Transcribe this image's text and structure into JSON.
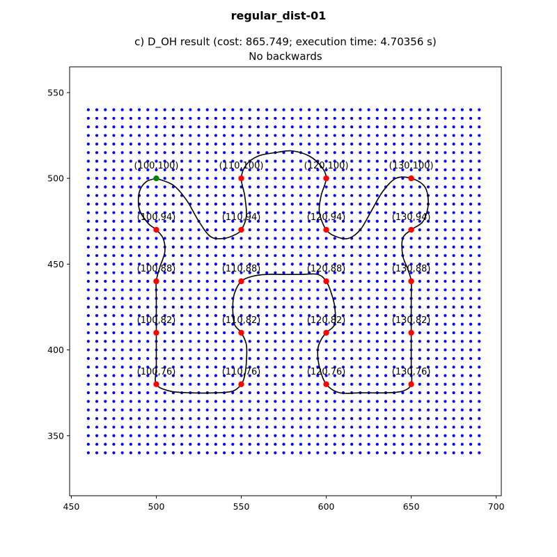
{
  "figure_title": "regular_dist-01",
  "chart_data": {
    "type": "scatter",
    "title": "c) D_OH result (cost: 865.749; execution time: 4.70356 s)",
    "subtitle": "No backwards",
    "xlabel": "",
    "ylabel": "",
    "xlim": [
      449,
      703
    ],
    "ylim": [
      315,
      565
    ],
    "x_ticks": [
      450,
      500,
      550,
      600,
      650,
      700
    ],
    "y_ticks": [
      350,
      400,
      450,
      500,
      550
    ],
    "grid": false,
    "background_grid": {
      "x_start": 460,
      "x_end": 690,
      "x_step": 5,
      "y_start": 340,
      "y_end": 540,
      "y_step": 5,
      "color": "#0000ff"
    },
    "targets": [
      {
        "label": "(100,100)",
        "x": 500,
        "y": 500,
        "color": "#008000"
      },
      {
        "label": "(110,100)",
        "x": 550,
        "y": 500,
        "color": "#ff0000"
      },
      {
        "label": "(120,100)",
        "x": 600,
        "y": 500,
        "color": "#ff0000"
      },
      {
        "label": "(130,100)",
        "x": 650,
        "y": 500,
        "color": "#ff0000"
      },
      {
        "label": "(100,94)",
        "x": 500,
        "y": 470,
        "color": "#ff0000"
      },
      {
        "label": "(110,94)",
        "x": 550,
        "y": 470,
        "color": "#ff0000"
      },
      {
        "label": "(120,94)",
        "x": 600,
        "y": 470,
        "color": "#ff0000"
      },
      {
        "label": "(130,94)",
        "x": 650,
        "y": 470,
        "color": "#ff0000"
      },
      {
        "label": "(100,88)",
        "x": 500,
        "y": 440,
        "color": "#ff0000"
      },
      {
        "label": "(110,88)",
        "x": 550,
        "y": 440,
        "color": "#ff0000"
      },
      {
        "label": "(120,88)",
        "x": 600,
        "y": 440,
        "color": "#ff0000"
      },
      {
        "label": "(130,88)",
        "x": 650,
        "y": 440,
        "color": "#ff0000"
      },
      {
        "label": "(100,82)",
        "x": 500,
        "y": 410,
        "color": "#ff0000"
      },
      {
        "label": "(110,82)",
        "x": 550,
        "y": 410,
        "color": "#ff0000"
      },
      {
        "label": "(120,82)",
        "x": 600,
        "y": 410,
        "color": "#ff0000"
      },
      {
        "label": "(130,82)",
        "x": 650,
        "y": 410,
        "color": "#ff0000"
      },
      {
        "label": "(100,76)",
        "x": 500,
        "y": 380,
        "color": "#ff0000"
      },
      {
        "label": "(110,76)",
        "x": 550,
        "y": 380,
        "color": "#ff0000"
      },
      {
        "label": "(120,76)",
        "x": 600,
        "y": 380,
        "color": "#ff0000"
      },
      {
        "label": "(130,76)",
        "x": 650,
        "y": 380,
        "color": "#ff0000"
      }
    ],
    "path": {
      "color": "#000000",
      "points": [
        [
          500,
          500
        ],
        [
          510,
          496
        ],
        [
          518,
          487
        ],
        [
          525,
          475
        ],
        [
          532,
          466
        ],
        [
          540,
          465
        ],
        [
          546,
          467
        ],
        [
          550,
          470
        ],
        [
          553,
          478
        ],
        [
          552,
          490
        ],
        [
          550,
          500
        ],
        [
          553,
          508
        ],
        [
          560,
          513
        ],
        [
          570,
          515
        ],
        [
          580,
          516
        ],
        [
          590,
          513
        ],
        [
          597,
          507
        ],
        [
          600,
          500
        ],
        [
          597,
          490
        ],
        [
          596,
          480
        ],
        [
          600,
          470
        ],
        [
          606,
          466
        ],
        [
          613,
          465
        ],
        [
          620,
          470
        ],
        [
          626,
          480
        ],
        [
          633,
          492
        ],
        [
          641,
          500
        ],
        [
          650,
          500
        ],
        [
          658,
          495
        ],
        [
          660,
          485
        ],
        [
          657,
          475
        ],
        [
          650,
          470
        ],
        [
          645,
          465
        ],
        [
          645,
          455
        ],
        [
          648,
          447
        ],
        [
          650,
          440
        ],
        [
          650,
          430
        ],
        [
          650,
          420
        ],
        [
          650,
          410
        ],
        [
          650,
          400
        ],
        [
          650,
          390
        ],
        [
          650,
          380
        ],
        [
          645,
          376
        ],
        [
          635,
          375
        ],
        [
          620,
          375
        ],
        [
          608,
          375
        ],
        [
          600,
          380
        ],
        [
          596,
          390
        ],
        [
          595,
          400
        ],
        [
          597,
          406
        ],
        [
          600,
          410
        ],
        [
          605,
          415
        ],
        [
          605,
          425
        ],
        [
          603,
          433
        ],
        [
          600,
          440
        ],
        [
          595,
          444
        ],
        [
          585,
          444
        ],
        [
          575,
          444
        ],
        [
          565,
          444
        ],
        [
          557,
          443
        ],
        [
          550,
          440
        ],
        [
          546,
          433
        ],
        [
          545,
          425
        ],
        [
          546,
          415
        ],
        [
          550,
          410
        ],
        [
          553,
          403
        ],
        [
          553,
          393
        ],
        [
          552,
          385
        ],
        [
          550,
          380
        ],
        [
          545,
          376
        ],
        [
          535,
          375
        ],
        [
          520,
          375
        ],
        [
          508,
          376
        ],
        [
          500,
          380
        ],
        [
          500,
          390
        ],
        [
          500,
          400
        ],
        [
          500,
          410
        ],
        [
          500,
          420
        ],
        [
          500,
          430
        ],
        [
          500,
          440
        ],
        [
          502,
          448
        ],
        [
          505,
          457
        ],
        [
          504,
          465
        ],
        [
          500,
          470
        ],
        [
          495,
          474
        ],
        [
          490,
          482
        ],
        [
          490,
          492
        ],
        [
          494,
          498
        ],
        [
          500,
          500
        ]
      ]
    }
  }
}
